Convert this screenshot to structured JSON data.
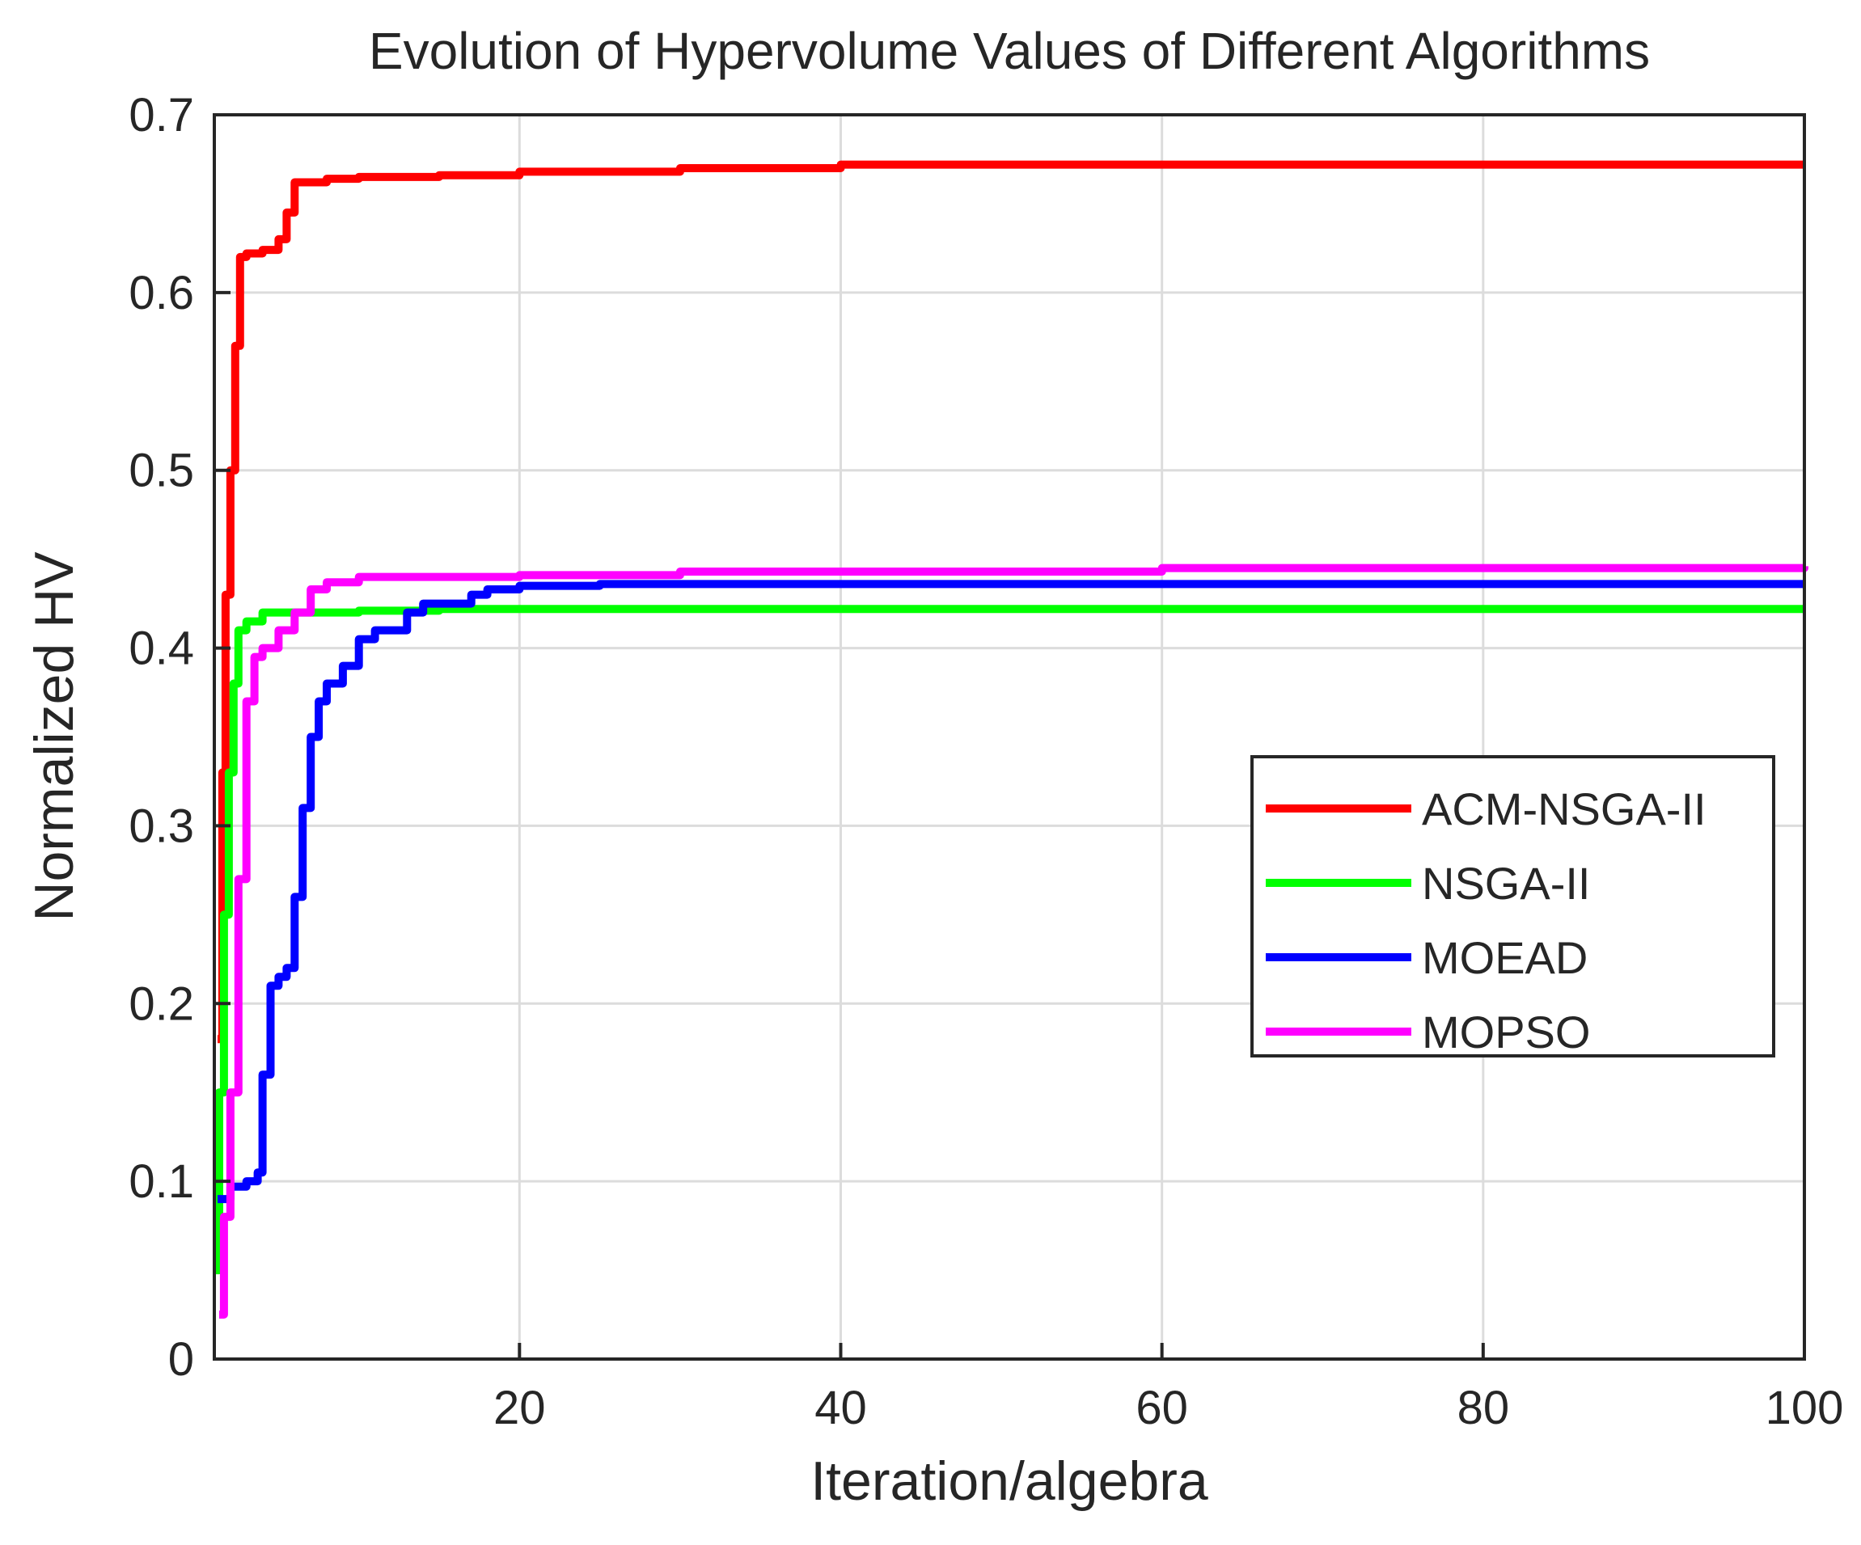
{
  "chart_data": {
    "type": "line",
    "title": "Evolution of Hypervolume Values of Different Algorithms",
    "xlabel": "Iteration/algebra",
    "ylabel": "Normalized HV",
    "xlim": [
      1,
      100
    ],
    "ylim": [
      0,
      0.7
    ],
    "xticks": [
      20,
      40,
      60,
      80,
      100
    ],
    "xtick_labels": [
      "20",
      "40",
      "60",
      "80",
      "100"
    ],
    "yticks": [
      0,
      0.1,
      0.2,
      0.3,
      0.4,
      0.5,
      0.6,
      0.7
    ],
    "ytick_labels": [
      "0",
      "0.1",
      "0.2",
      "0.3",
      "0.4",
      "0.5",
      "0.6",
      "0.7"
    ],
    "grid": true,
    "legend_position": "middle-right",
    "series": [
      {
        "name": "ACM-NSGA-II",
        "color": "#ff0000",
        "x": [
          1.2,
          1.5,
          1.7,
          2.0,
          2.3,
          2.6,
          3.0,
          4.0,
          5.0,
          5.5,
          6.0,
          8.0,
          10,
          15,
          20,
          30,
          40,
          100
        ],
        "y": [
          0.18,
          0.33,
          0.43,
          0.5,
          0.57,
          0.62,
          0.622,
          0.624,
          0.63,
          0.645,
          0.662,
          0.664,
          0.665,
          0.666,
          0.668,
          0.67,
          0.672,
          0.672
        ]
      },
      {
        "name": "NSGA-II",
        "color": "#00ff00",
        "x": [
          1.0,
          1.3,
          1.6,
          1.9,
          2.2,
          2.5,
          3.0,
          4.0,
          6.0,
          10,
          15,
          20,
          100
        ],
        "y": [
          0.05,
          0.15,
          0.25,
          0.33,
          0.38,
          0.41,
          0.415,
          0.42,
          0.42,
          0.421,
          0.422,
          0.422,
          0.422
        ]
      },
      {
        "name": "MOEAD",
        "color": "#0000ff",
        "x": [
          1.2,
          2.0,
          3.0,
          3.7,
          4.0,
          4.5,
          5.0,
          5.5,
          6.0,
          6.5,
          7.0,
          7.5,
          8.0,
          9.0,
          10,
          11,
          12,
          13,
          14,
          15,
          16,
          17,
          18,
          20,
          25,
          30,
          100
        ],
        "y": [
          0.09,
          0.097,
          0.1,
          0.105,
          0.16,
          0.21,
          0.215,
          0.22,
          0.26,
          0.31,
          0.35,
          0.37,
          0.38,
          0.39,
          0.405,
          0.41,
          0.41,
          0.42,
          0.425,
          0.425,
          0.425,
          0.43,
          0.433,
          0.435,
          0.436,
          0.436,
          0.436
        ]
      },
      {
        "name": "MOPSO",
        "color": "#ff00ff",
        "x": [
          1.3,
          1.6,
          2.0,
          2.5,
          3.0,
          3.5,
          4.0,
          5.0,
          6.0,
          7.0,
          8.0,
          10,
          15,
          20,
          30,
          60,
          100
        ],
        "y": [
          0.025,
          0.08,
          0.15,
          0.27,
          0.37,
          0.395,
          0.4,
          0.41,
          0.42,
          0.433,
          0.437,
          0.44,
          0.44,
          0.441,
          0.443,
          0.445,
          0.446
        ]
      }
    ]
  }
}
